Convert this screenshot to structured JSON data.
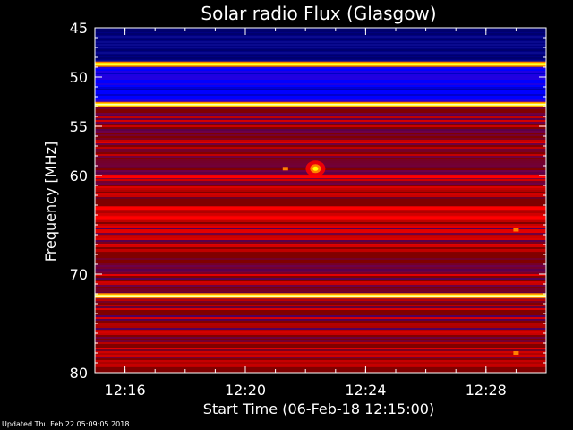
{
  "chart_data": {
    "type": "heatmap",
    "title": "Solar radio Flux (Glasgow)",
    "xlabel": "Start Time (06-Feb-18 12:15:00)",
    "ylabel": "Frequency [MHz]",
    "xlim": [
      "12:15:00",
      "12:30:00"
    ],
    "ylim": [
      45,
      80
    ],
    "y_inverted": true,
    "x_ticks": [
      "12:16",
      "12:20",
      "12:24",
      "12:28"
    ],
    "y_ticks": [
      45,
      50,
      55,
      60,
      70,
      80
    ],
    "colormap": [
      "#000080",
      "#0000ff",
      "#800000",
      "#ff0000",
      "#ff8000",
      "#ffff00",
      "#ffffff"
    ],
    "background_bands": [
      {
        "from_mhz": 45.0,
        "to_mhz": 49.0,
        "level": "low"
      },
      {
        "from_mhz": 49.0,
        "to_mhz": 52.5,
        "level": "low"
      },
      {
        "from_mhz": 52.5,
        "to_mhz": 80.0,
        "level": "medium"
      }
    ],
    "interference_lines_mhz": [
      {
        "freq": 48.7,
        "level": "high"
      },
      {
        "freq": 52.8,
        "level": "high"
      },
      {
        "freq": 60.1,
        "level": "medium-high"
      },
      {
        "freq": 63.3,
        "level": "medium-high"
      },
      {
        "freq": 64.3,
        "level": "medium-high"
      },
      {
        "freq": 67.6,
        "level": "medium"
      },
      {
        "freq": 72.2,
        "level": "high"
      }
    ],
    "features": [
      {
        "label": "burst",
        "time": "12:22:20",
        "freq_mhz": 59.3,
        "level": "high"
      },
      {
        "label": "spot",
        "time": "12:21:20",
        "freq_mhz": 59.3,
        "level": "medium-high"
      },
      {
        "label": "spot",
        "time": "12:29:00",
        "freq_mhz": 78.0,
        "level": "medium-high"
      },
      {
        "label": "spot",
        "time": "12:29:00",
        "freq_mhz": 65.5,
        "level": "medium-high"
      }
    ]
  },
  "footer": {
    "updated": "Updated Thu Feb 22 05:09:05 2018"
  }
}
